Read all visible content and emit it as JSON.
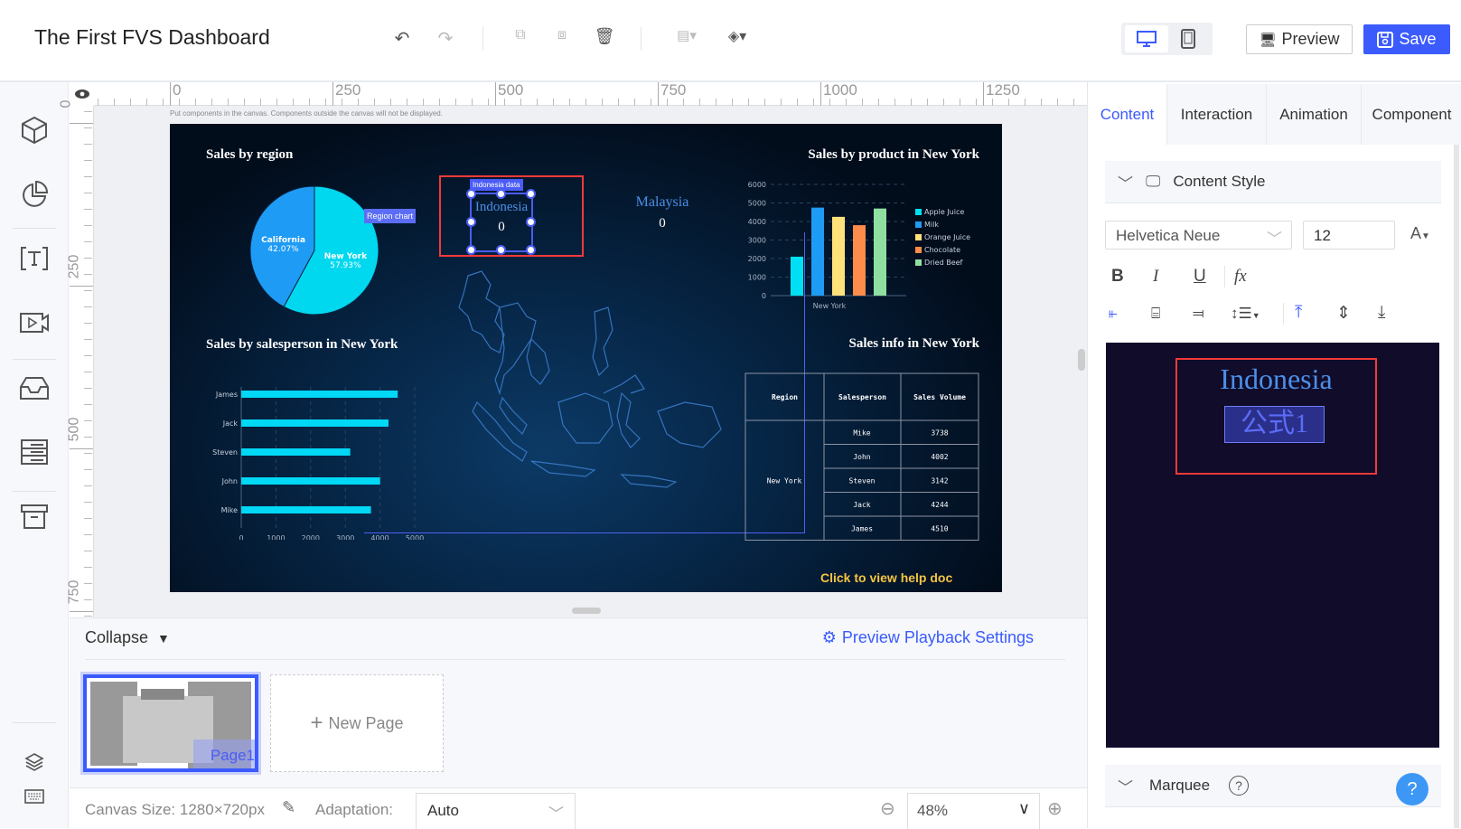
{
  "header": {
    "title": "The First FVS Dashboard",
    "preview_label": "Preview",
    "save_label": "Save",
    "accent": "#3b5bfd"
  },
  "toolbar": {
    "icons": [
      "undo-icon",
      "redo-icon",
      "group-icon",
      "ungroup-icon",
      "trash-icon",
      "align-icon",
      "layer-order-icon"
    ]
  },
  "sidebar": {
    "icons": [
      "cube-icon",
      "pie-chart-icon",
      "text-icon",
      "video-icon",
      "inbox-icon",
      "list-icon",
      "archive-icon",
      "layers-icon",
      "keyboard-icon"
    ]
  },
  "ruler": {
    "top": [
      "0",
      "250",
      "500",
      "750",
      "1000",
      "1250"
    ],
    "left": [
      "0",
      "250",
      "500",
      "750"
    ]
  },
  "canvas": {
    "hint": "Put components in the canvas. Components outside the canvas will not be displayed.",
    "region_title": "Sales by region",
    "region_tag": "Region chart",
    "indonesia": {
      "tag": "Indonesia data",
      "name": "Indonesia",
      "value": "0"
    },
    "malaysia": {
      "name": "Malaysia",
      "value": "0"
    },
    "product_title": "Sales by product in New York",
    "salesperson_title": "Sales by salesperson in New York",
    "info_title": "Sales info in New York",
    "table": {
      "headers": [
        "Region",
        "Salesperson",
        "Sales Volume"
      ],
      "region": "New York",
      "rows": [
        [
          "Mike",
          "3738"
        ],
        [
          "John",
          "4002"
        ],
        [
          "Steven",
          "3142"
        ],
        [
          "Jack",
          "4244"
        ],
        [
          "James",
          "4510"
        ]
      ]
    },
    "help": "Click to view help doc"
  },
  "chart_data": [
    {
      "type": "pie",
      "title": "Sales by region",
      "slices": [
        {
          "label": "New York",
          "value": 57.93,
          "pct": "57.93%",
          "color": "#00d8f0"
        },
        {
          "label": "California",
          "value": 42.07,
          "pct": "42.07%",
          "color": "#1e9bf5"
        }
      ]
    },
    {
      "type": "bar",
      "title": "Sales by product in New York",
      "categories": [
        "New York"
      ],
      "ylim": [
        0,
        6000
      ],
      "yticks": [
        "0",
        "1000",
        "2000",
        "3000",
        "4000",
        "5000",
        "6000"
      ],
      "legend": "right",
      "series": [
        {
          "name": "Apple Juice",
          "values": [
            2100
          ],
          "color": "#00e0f5"
        },
        {
          "name": "Milk",
          "values": [
            4750
          ],
          "color": "#1e9bf5"
        },
        {
          "name": "Orange Juice",
          "values": [
            4250
          ],
          "color": "#ffe27a"
        },
        {
          "name": "Chocolate",
          "values": [
            3800
          ],
          "color": "#ff8c4a"
        },
        {
          "name": "Dried Beef",
          "values": [
            4700
          ],
          "color": "#8fe0a0"
        }
      ]
    },
    {
      "type": "bar",
      "orientation": "horizontal",
      "title": "Sales by salesperson in New York",
      "categories": [
        "James",
        "Jack",
        "Steven",
        "John",
        "Mike"
      ],
      "values": [
        4510,
        4244,
        3142,
        4002,
        3738
      ],
      "xlim": [
        0,
        5000
      ],
      "xticks": [
        "0",
        "1000",
        "2000",
        "3000",
        "4000",
        "5000"
      ],
      "color": "#00d8f5"
    }
  ],
  "bottom": {
    "collapse": "Collapse",
    "playback": "Preview Playback Settings",
    "page1": "Page1",
    "new_page": "New Page"
  },
  "footer": {
    "canvas_size": "Canvas Size: 1280×720px",
    "adaptation_label": "Adaptation:",
    "adaptation": "Auto",
    "zoom": "48%"
  },
  "panel": {
    "tabs": [
      "Content",
      "Interaction",
      "Animation",
      "Component"
    ],
    "section": "Content Style",
    "font": "Helvetica Neue",
    "font_size": "12",
    "font_color_label": "A",
    "fx": "fx",
    "preview_title": "Indonesia",
    "preview_formula": "公式1",
    "marquee": "Marquee",
    "help": "?"
  }
}
